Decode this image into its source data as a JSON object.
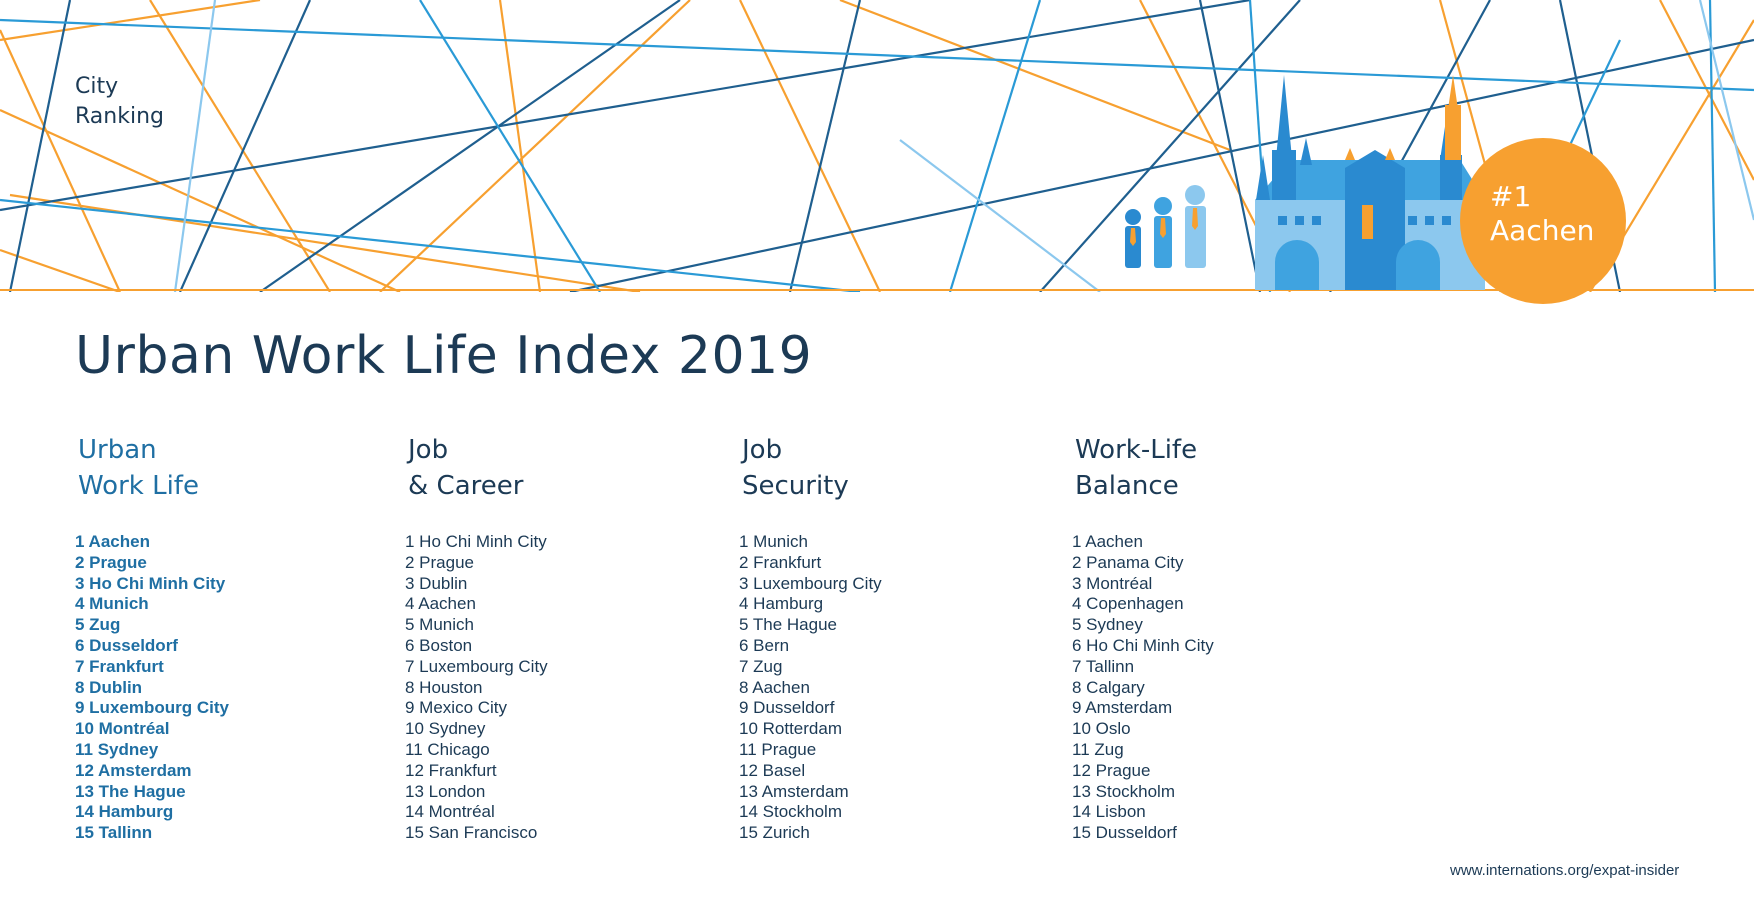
{
  "header": {
    "tag_line1": "City",
    "tag_line2": "Ranking",
    "badge_rank": "#1",
    "badge_city": "Aachen"
  },
  "title": "Urban Work Life Index 2019",
  "columns": [
    {
      "heading": [
        "Urban",
        "Work Life"
      ],
      "items": [
        "1 Aachen",
        "2 Prague",
        "3 Ho Chi Minh City",
        "4 Munich",
        "5 Zug",
        "6 Dusseldorf",
        "7 Frankfurt",
        "8 Dublin",
        "9 Luxembourg City",
        "10 Montréal",
        "11 Sydney",
        "12 Amsterdam",
        "13 The Hague",
        "14 Hamburg",
        "15 Tallinn"
      ]
    },
    {
      "heading": [
        "Job",
        "& Career"
      ],
      "items": [
        "1 Ho Chi Minh City",
        "2 Prague",
        "3 Dublin",
        "4 Aachen",
        "5 Munich",
        "6 Boston",
        "7 Luxembourg City",
        "8 Houston",
        "9 Mexico City",
        "10 Sydney",
        "11 Chicago",
        "12 Frankfurt",
        "13 London",
        "14 Montréal",
        "15 San Francisco"
      ]
    },
    {
      "heading": [
        "Job",
        "Security"
      ],
      "items": [
        "1 Munich",
        "2 Frankfurt",
        "3 Luxembourg City",
        "4 Hamburg",
        "5 The Hague",
        "6 Bern",
        "7 Zug",
        "8 Aachen",
        "9 Dusseldorf",
        "10 Rotterdam",
        "11 Prague",
        "12 Basel",
        "13 Amsterdam",
        "14 Stockholm",
        "15 Zurich"
      ]
    },
    {
      "heading": [
        "Work-Life",
        "Balance"
      ],
      "items": [
        "1 Aachen",
        "2 Panama City",
        "3 Montréal",
        "4 Copenhagen",
        "5 Sydney",
        "6 Ho Chi Minh City",
        "7 Tallinn",
        "8 Calgary",
        "9 Amsterdam",
        "10 Oslo",
        "11 Zug",
        "12 Prague",
        "13 Stockholm",
        "14 Lisbon",
        "15 Dusseldorf"
      ]
    }
  ],
  "source": "www.internations.org/expat-insider",
  "colors": {
    "orange": "#f7a030",
    "dark_blue": "#1f5f8f",
    "mid_blue": "#2a9ad6",
    "light_blue": "#8cc8ee",
    "text": "#1c3a55"
  },
  "icons": [
    "person-figure-icon",
    "cathedral-icon"
  ]
}
